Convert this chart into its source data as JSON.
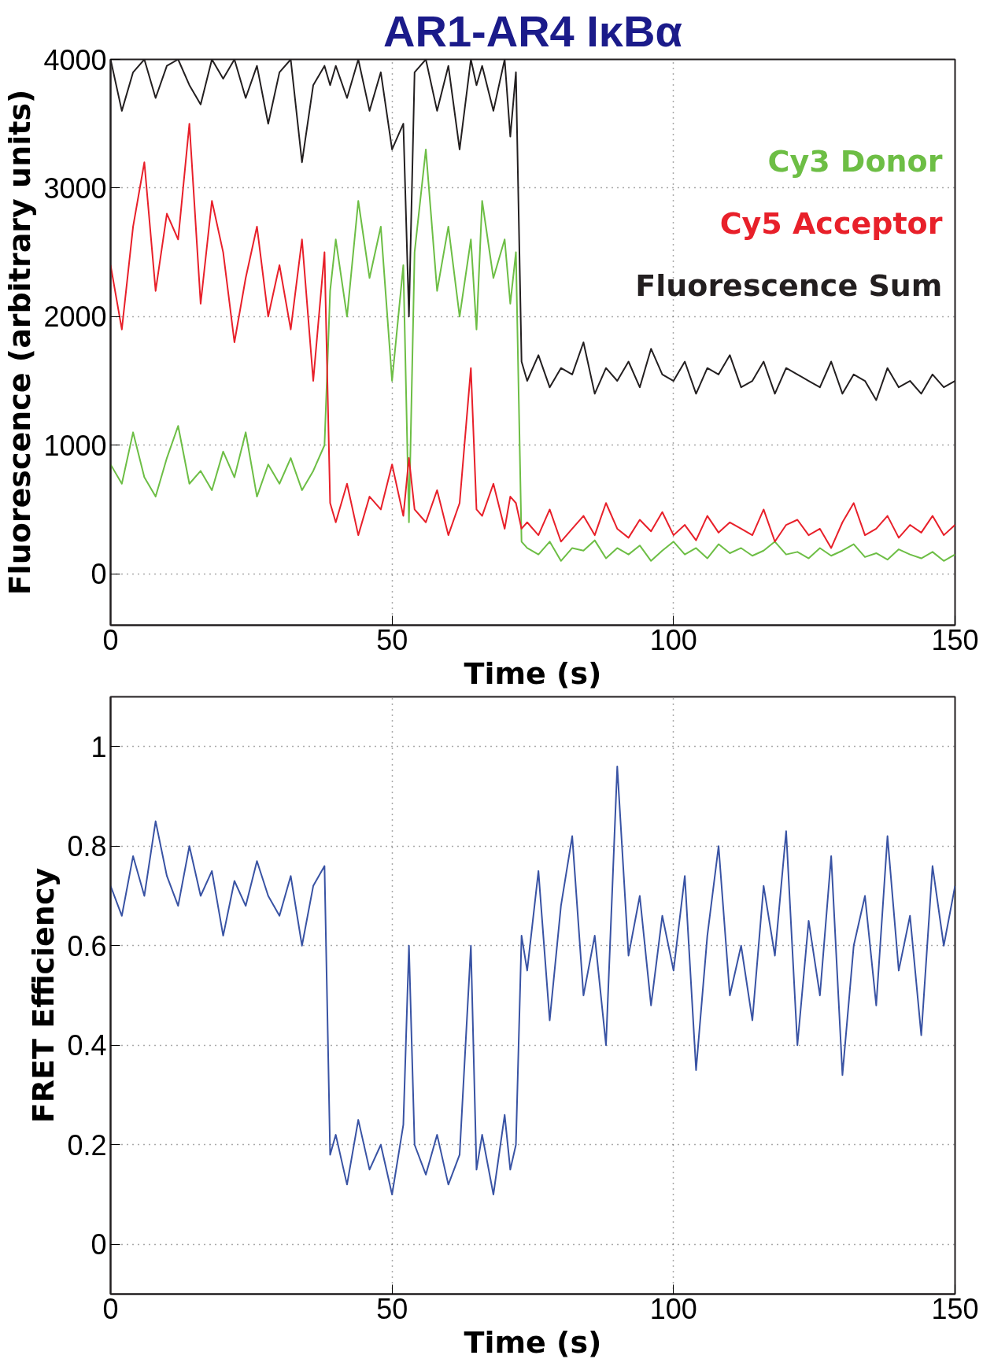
{
  "chart_data": [
    {
      "type": "line",
      "title": "AR1-AR4 IκBα",
      "xlabel": "Time (s)",
      "ylabel": "Fluorescence (arbitrary units)",
      "x": [
        0,
        2,
        4,
        6,
        8,
        10,
        12,
        14,
        16,
        18,
        20,
        22,
        24,
        26,
        28,
        30,
        32,
        34,
        36,
        38,
        39,
        40,
        42,
        44,
        46,
        48,
        50,
        52,
        53,
        54,
        56,
        58,
        60,
        62,
        64,
        65,
        66,
        68,
        70,
        71,
        72,
        73,
        74,
        76,
        78,
        80,
        82,
        84,
        86,
        88,
        90,
        92,
        94,
        96,
        98,
        100,
        102,
        104,
        106,
        108,
        110,
        112,
        114,
        116,
        118,
        120,
        122,
        124,
        126,
        128,
        130,
        132,
        134,
        136,
        138,
        140,
        142,
        144,
        146,
        148,
        150
      ],
      "xlim": [
        0,
        150
      ],
      "ylim": [
        -400,
        4000
      ],
      "xticks": [
        0,
        50,
        100,
        150
      ],
      "yticks": [
        0,
        1000,
        2000,
        3000,
        4000
      ],
      "grid": true,
      "legend": "top right",
      "series": [
        {
          "name": "Cy3 Donor",
          "color": "#6dbe45",
          "values": [
            850,
            700,
            1100,
            750,
            600,
            900,
            1150,
            700,
            800,
            650,
            950,
            750,
            1100,
            600,
            850,
            700,
            900,
            650,
            800,
            1000,
            2200,
            2600,
            2000,
            2900,
            2300,
            2700,
            1500,
            2400,
            400,
            2500,
            3300,
            2200,
            2700,
            2000,
            2600,
            1900,
            2900,
            2300,
            2600,
            2100,
            2500,
            250,
            200,
            150,
            250,
            100,
            200,
            180,
            260,
            120,
            200,
            150,
            220,
            100,
            180,
            250,
            150,
            200,
            120,
            230,
            160,
            200,
            140,
            180,
            250,
            150,
            170,
            120,
            200,
            140,
            180,
            230,
            130,
            160,
            110,
            190,
            150,
            120,
            170,
            100,
            150
          ]
        },
        {
          "name": "Cy5 Acceptor",
          "color": "#e8202a",
          "values": [
            2400,
            1900,
            2700,
            3200,
            2200,
            2800,
            2600,
            3500,
            2100,
            2900,
            2500,
            1800,
            2300,
            2700,
            2000,
            2400,
            1900,
            2600,
            1500,
            2500,
            550,
            400,
            700,
            300,
            600,
            500,
            850,
            450,
            900,
            500,
            400,
            650,
            300,
            550,
            1600,
            500,
            450,
            700,
            350,
            600,
            550,
            350,
            400,
            300,
            500,
            250,
            350,
            450,
            300,
            550,
            350,
            280,
            420,
            330,
            480,
            300,
            380,
            260,
            450,
            320,
            400,
            350,
            300,
            500,
            250,
            380,
            420,
            300,
            350,
            200,
            400,
            550,
            300,
            350,
            450,
            280,
            380,
            320,
            450,
            300,
            380
          ]
        },
        {
          "name": "Fluorescence Sum",
          "color": "#231f20",
          "values": [
            4000,
            3600,
            3900,
            4000,
            3700,
            3950,
            4000,
            3800,
            3650,
            4000,
            3850,
            4000,
            3700,
            3950,
            3500,
            3900,
            4000,
            3200,
            3800,
            3950,
            3800,
            3950,
            3700,
            4000,
            3600,
            3900,
            3300,
            3500,
            2000,
            3900,
            4000,
            3600,
            3950,
            3300,
            4000,
            3800,
            3950,
            3600,
            4000,
            3400,
            3900,
            1650,
            1500,
            1700,
            1450,
            1600,
            1550,
            1800,
            1400,
            1600,
            1500,
            1650,
            1450,
            1750,
            1550,
            1500,
            1650,
            1400,
            1600,
            1550,
            1700,
            1450,
            1500,
            1650,
            1400,
            1600,
            1550,
            1500,
            1450,
            1650,
            1400,
            1550,
            1500,
            1350,
            1600,
            1450,
            1500,
            1400,
            1550,
            1450,
            1500
          ]
        }
      ]
    },
    {
      "type": "line",
      "xlabel": "Time (s)",
      "ylabel": "FRET Efficiency",
      "x": [
        0,
        2,
        4,
        6,
        8,
        10,
        12,
        14,
        16,
        18,
        20,
        22,
        24,
        26,
        28,
        30,
        32,
        34,
        36,
        38,
        39,
        40,
        42,
        44,
        46,
        48,
        50,
        52,
        53,
        54,
        56,
        58,
        60,
        62,
        64,
        65,
        66,
        68,
        70,
        71,
        72,
        73,
        74,
        76,
        78,
        80,
        82,
        84,
        86,
        88,
        90,
        92,
        94,
        96,
        98,
        100,
        102,
        104,
        106,
        108,
        110,
        112,
        114,
        116,
        118,
        120,
        122,
        124,
        126,
        128,
        130,
        132,
        134,
        136,
        138,
        140,
        142,
        144,
        146,
        148,
        150
      ],
      "xlim": [
        0,
        150
      ],
      "ylim": [
        -0.1,
        1.1
      ],
      "xticks": [
        0,
        50,
        100,
        150
      ],
      "yticks": [
        0,
        0.2,
        0.4,
        0.6,
        0.8,
        1
      ],
      "grid": true,
      "series": [
        {
          "color": "#3953a4",
          "values": [
            0.72,
            0.66,
            0.78,
            0.7,
            0.85,
            0.74,
            0.68,
            0.8,
            0.7,
            0.75,
            0.62,
            0.73,
            0.68,
            0.77,
            0.7,
            0.66,
            0.74,
            0.6,
            0.72,
            0.76,
            0.18,
            0.22,
            0.12,
            0.25,
            0.15,
            0.2,
            0.1,
            0.24,
            0.6,
            0.2,
            0.14,
            0.22,
            0.12,
            0.18,
            0.6,
            0.15,
            0.22,
            0.1,
            0.26,
            0.15,
            0.2,
            0.62,
            0.55,
            0.75,
            0.45,
            0.68,
            0.82,
            0.5,
            0.62,
            0.4,
            0.96,
            0.58,
            0.7,
            0.48,
            0.66,
            0.55,
            0.74,
            0.35,
            0.62,
            0.8,
            0.5,
            0.6,
            0.45,
            0.72,
            0.58,
            0.83,
            0.4,
            0.65,
            0.5,
            0.78,
            0.34,
            0.6,
            0.7,
            0.48,
            0.82,
            0.55,
            0.66,
            0.42,
            0.76,
            0.6,
            0.72
          ]
        }
      ]
    }
  ]
}
